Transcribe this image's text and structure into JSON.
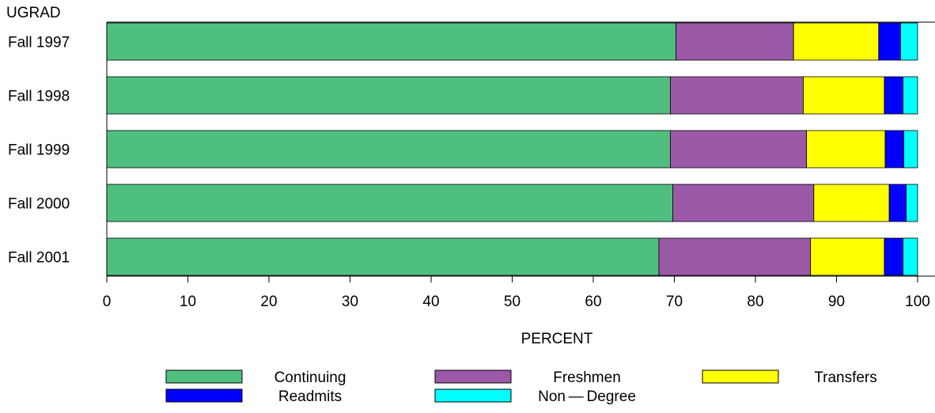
{
  "chart_data": {
    "type": "bar",
    "orientation": "horizontal",
    "stacked": true,
    "corner_label": "UGRAD",
    "xlabel": "PERCENT",
    "ylabel": "",
    "title": "",
    "xlim": [
      0,
      100
    ],
    "xticks": [
      0,
      10,
      20,
      30,
      40,
      50,
      60,
      70,
      80,
      90,
      100
    ],
    "grid": false,
    "legend_position": "bottom",
    "categories": [
      "Fall 1997",
      "Fall 1998",
      "Fall 1999",
      "Fall 2000",
      "Fall 2001"
    ],
    "series": [
      {
        "name": "Continuing",
        "color": "#4fbf80",
        "values": [
          70.2,
          69.5,
          69.5,
          69.8,
          68.1
        ]
      },
      {
        "name": "Freshmen",
        "color": "#9b59a8",
        "values": [
          14.5,
          16.4,
          16.8,
          17.4,
          18.7
        ]
      },
      {
        "name": "Transfers",
        "color": "#ffff00",
        "values": [
          10.5,
          10.0,
          9.7,
          9.3,
          9.1
        ]
      },
      {
        "name": "Readmits",
        "color": "#0000ff",
        "values": [
          2.7,
          2.3,
          2.3,
          2.1,
          2.3
        ]
      },
      {
        "name": "Non — Degree",
        "color": "#00ffff",
        "values": [
          2.1,
          1.8,
          1.7,
          1.4,
          1.8
        ]
      }
    ]
  }
}
